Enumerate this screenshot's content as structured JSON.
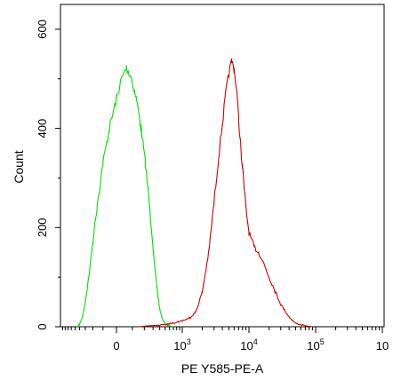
{
  "chart_data": {
    "type": "line",
    "xlabel": "PE Y585-PE-A",
    "ylabel": "Count",
    "ylim": [
      0,
      650
    ],
    "x_scale": "biexponential",
    "x_ticks": [
      {
        "base": "0",
        "exp": ""
      },
      {
        "base": "10",
        "exp": "3"
      },
      {
        "base": "10",
        "exp": "4"
      },
      {
        "base": "10",
        "exp": "5"
      },
      {
        "base": "10",
        "exp": ""
      }
    ],
    "y_ticks": [
      "0",
      "200",
      "400",
      "600"
    ],
    "grid": false,
    "legend": "none",
    "series": [
      {
        "color": "#00e000",
        "points": [
          [
            -450,
            0
          ],
          [
            -400,
            5
          ],
          [
            -350,
            20
          ],
          [
            -300,
            50
          ],
          [
            -250,
            100
          ],
          [
            -200,
            170
          ],
          [
            -150,
            250
          ],
          [
            -100,
            330
          ],
          [
            -50,
            400
          ],
          [
            0,
            460
          ],
          [
            30,
            500
          ],
          [
            60,
            522
          ],
          [
            90,
            505
          ],
          [
            130,
            460
          ],
          [
            170,
            400
          ],
          [
            210,
            330
          ],
          [
            250,
            255
          ],
          [
            290,
            180
          ],
          [
            330,
            110
          ],
          [
            370,
            60
          ],
          [
            410,
            30
          ],
          [
            450,
            15
          ],
          [
            500,
            7
          ],
          [
            560,
            3
          ],
          [
            640,
            1
          ],
          [
            700,
            0
          ]
        ]
      },
      {
        "color": "#cc0000",
        "points": [
          [
            150,
            0
          ],
          [
            250,
            2
          ],
          [
            400,
            3
          ],
          [
            550,
            5
          ],
          [
            700,
            8
          ],
          [
            850,
            10
          ],
          [
            1000,
            12
          ],
          [
            1300,
            18
          ],
          [
            1600,
            30
          ],
          [
            2000,
            70
          ],
          [
            2500,
            150
          ],
          [
            3000,
            250
          ],
          [
            3500,
            340
          ],
          [
            4000,
            410
          ],
          [
            4500,
            470
          ],
          [
            5000,
            510
          ],
          [
            5500,
            535
          ],
          [
            6000,
            520
          ],
          [
            6500,
            480
          ],
          [
            7000,
            420
          ],
          [
            8000,
            320
          ],
          [
            9000,
            240
          ],
          [
            10000,
            190
          ],
          [
            12000,
            160
          ],
          [
            14000,
            150
          ],
          [
            17000,
            125
          ],
          [
            20000,
            100
          ],
          [
            25000,
            70
          ],
          [
            30000,
            45
          ],
          [
            40000,
            20
          ],
          [
            50000,
            7
          ],
          [
            70000,
            2
          ],
          [
            90000,
            0
          ]
        ]
      }
    ]
  }
}
